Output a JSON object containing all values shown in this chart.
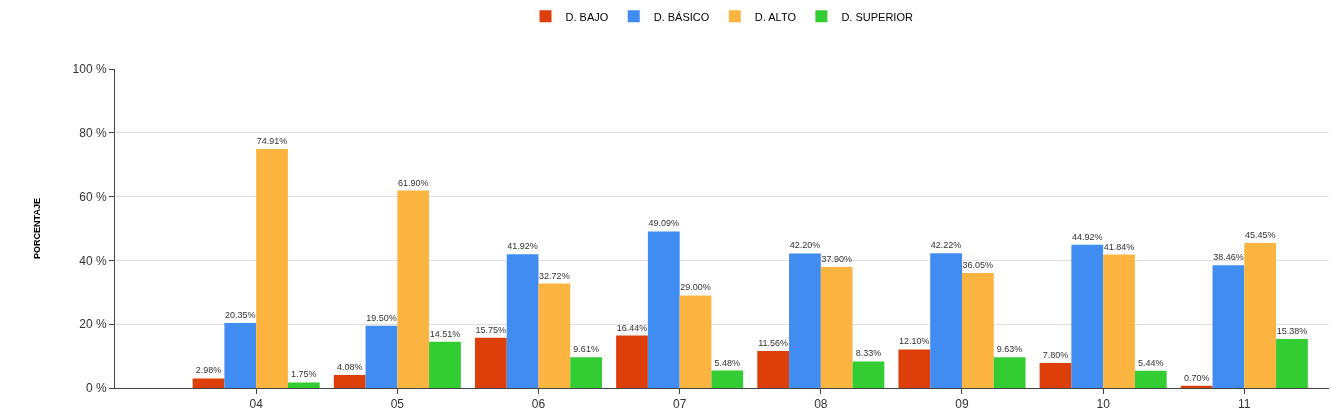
{
  "chart_data": {
    "type": "bar",
    "ylabel": "PORCENTAJE",
    "categories": [
      "04",
      "05",
      "06",
      "07",
      "08",
      "09",
      "10",
      "11"
    ],
    "series": [
      {
        "name": "D. BAJO",
        "color": "#dc3f0a",
        "values": [
          2.98,
          4.08,
          15.75,
          16.44,
          11.56,
          12.1,
          7.8,
          0.7
        ],
        "value_labels": [
          "2.98%",
          "4.08%",
          "15.75%",
          "16.44%",
          "11.56%",
          "12.10%",
          "7.80%",
          "0.70%"
        ]
      },
      {
        "name": "D. BÁSICO",
        "color": "#418cf0",
        "values": [
          20.35,
          19.5,
          41.92,
          49.09,
          42.2,
          42.22,
          44.92,
          38.46
        ],
        "value_labels": [
          "20.35%",
          "19.50%",
          "41.92%",
          "49.09%",
          "42.20%",
          "42.22%",
          "44.92%",
          "38.46%"
        ]
      },
      {
        "name": "D. ALTO",
        "color": "#fcb441",
        "values": [
          74.91,
          61.9,
          32.72,
          29.0,
          37.9,
          36.05,
          41.84,
          45.45
        ],
        "value_labels": [
          "74.91%",
          "61.90%",
          "32.72%",
          "29.00%",
          "37.90%",
          "36.05%",
          "41.84%",
          "45.45%"
        ]
      },
      {
        "name": "D. SUPERIOR",
        "color": "#33cc33",
        "values": [
          1.75,
          14.51,
          9.61,
          5.48,
          8.33,
          9.63,
          5.44,
          15.38
        ],
        "value_labels": [
          "1.75%",
          "14.51%",
          "9.61%",
          "5.48%",
          "8.33%",
          "9.63%",
          "5.44%",
          "15.38%"
        ]
      }
    ],
    "ylim": [
      0,
      100
    ],
    "yticks": [
      {
        "value": 0,
        "label": "0 %"
      },
      {
        "value": 20,
        "label": "20 %"
      },
      {
        "value": 40,
        "label": "40 %"
      },
      {
        "value": 60,
        "label": "60 %"
      },
      {
        "value": 80,
        "label": "80 %"
      },
      {
        "value": 100,
        "label": "100 %"
      }
    ],
    "grid": "y",
    "legend": "top"
  }
}
